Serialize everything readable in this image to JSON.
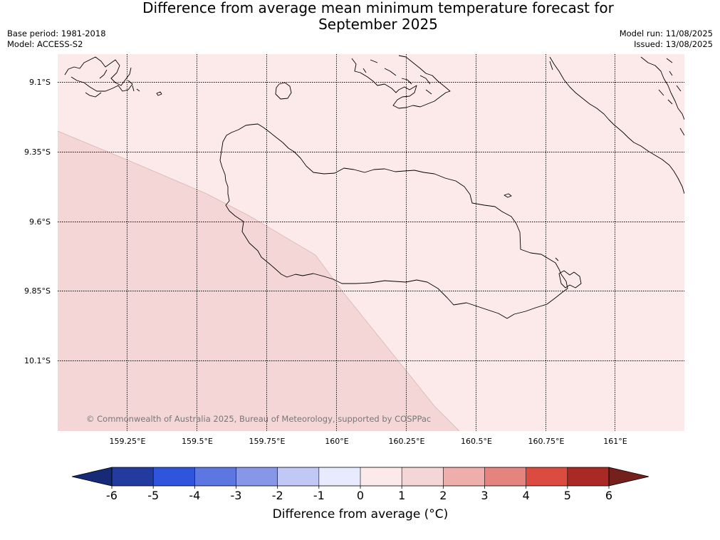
{
  "header": {
    "title_line1": "Difference from average mean minimum temperature forecast for",
    "title_line2": "September 2025",
    "base_period": "Base period: 1981-2018",
    "model": "Model: ACCESS-S2",
    "model_run": "Model run: 11/08/2025",
    "issued": "Issued: 13/08/2025"
  },
  "map": {
    "lat_labels": [
      "9.1°S",
      "9.35°S",
      "9.6°S",
      "9.85°S",
      "10.1°S"
    ],
    "lon_labels": [
      "159.25°E",
      "159.5°E",
      "159.75°E",
      "160°E",
      "160.25°E",
      "160.5°E",
      "160.75°E",
      "161°E"
    ],
    "region_colors": {
      "zero_to_one": "#fbeae9",
      "one_to_two": "#f4d6d6"
    },
    "copyright": "© Commonwealth of Australia 2025, Bureau of Meteorology, supported by COSPPac"
  },
  "colorbar": {
    "ticks": [
      "-6",
      "-5",
      "-4",
      "-3",
      "-2",
      "-1",
      "0",
      "1",
      "2",
      "3",
      "4",
      "5",
      "6"
    ],
    "colors": [
      "#233a9e",
      "#2f55dc",
      "#5c76e2",
      "#8797e8",
      "#c1c8f5",
      "#e8ebfd",
      "#fbeae9",
      "#f4d6d6",
      "#eeaeab",
      "#e5847e",
      "#db4b40",
      "#a92a24"
    ],
    "under_color": "#172a78",
    "over_color": "#74201c",
    "label": "Difference from average (°C)"
  }
}
